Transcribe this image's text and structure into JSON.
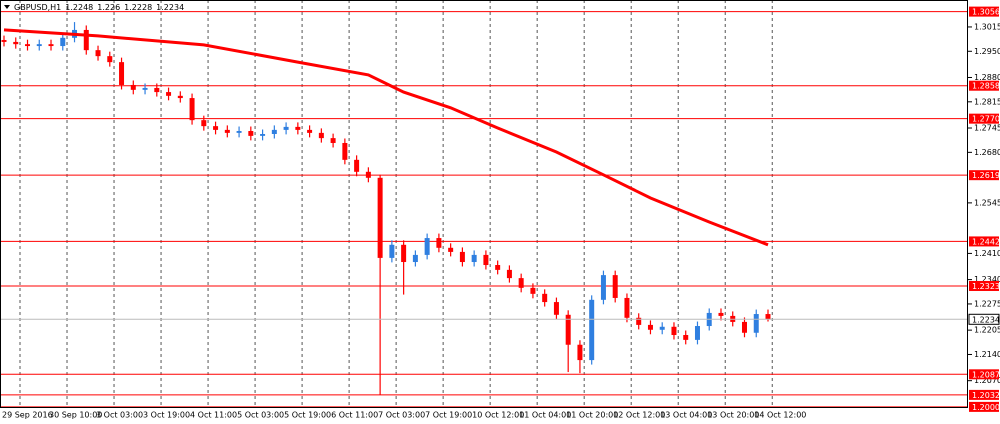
{
  "chart_data": {
    "type": "candlestick",
    "symbol": "GBPUSD,H1",
    "up_color": "#2f7fe0",
    "down_color": "#ff0000",
    "level_color": "#ff0000",
    "grid": true,
    "ylim": [
      1.1997,
      1.3087
    ],
    "yticks": [
      1.3015,
      {
        "value": 1.295,
        "label": "1.2950"
      },
      {
        "value": 1.288,
        "label": "1.2880"
      },
      1.2815,
      1.2745,
      {
        "value": 1.268,
        "label": "1.2680"
      },
      1.2545,
      {
        "value": 1.241,
        "label": "1.2410"
      },
      {
        "value": 1.234,
        "label": "1.2340"
      },
      1.2275,
      1.2205,
      {
        "value": 1.214,
        "label": "1.2140"
      },
      {
        "value": 1.207,
        "label": "1.2070"
      }
    ],
    "levels": [
      1.3056,
      1.2858,
      {
        "value": 1.277,
        "label": "1.2770"
      },
      1.2619,
      1.2442,
      1.2323,
      1.2087,
      1.2032,
      {
        "value": 1.2,
        "label": "1.2000"
      }
    ],
    "xlim": [
      0,
      65
    ],
    "xticks": [
      {
        "value": 0,
        "label": "29 Sep 2016"
      },
      {
        "value": 4,
        "label": "30 Sep 10:00"
      },
      {
        "value": 8,
        "label": "3 Oct 03:00"
      },
      {
        "value": 12,
        "label": "3 Oct 19:00"
      },
      {
        "value": 16,
        "label": "4 Oct 11:00"
      },
      {
        "value": 20,
        "label": "5 Oct 03:00"
      },
      {
        "value": 24,
        "label": "5 Oct 19:00"
      },
      {
        "value": 28,
        "label": "6 Oct 11:00"
      },
      {
        "value": 32,
        "label": "7 Oct 03:00"
      },
      {
        "value": 36,
        "label": "7 Oct 19:00"
      },
      {
        "value": 40,
        "label": "10 Oct 12:00"
      },
      {
        "value": 44,
        "label": "11 Oct 04:00"
      },
      {
        "value": 48,
        "label": "11 Oct 20:00"
      },
      {
        "value": 52,
        "label": "12 Oct 12:00"
      },
      {
        "value": 56,
        "label": "13 Oct 04:00"
      },
      {
        "value": 60,
        "label": "13 Oct 20:00"
      },
      {
        "value": 64,
        "label": "14 Oct 12:00"
      }
    ],
    "open": [
      1.298,
      1.2975,
      1.2969,
      1.2964,
      1.2969,
      1.2964,
      1.2986,
      1.3007,
      1.2953,
      1.2937,
      1.2921,
      1.286,
      1.2847,
      1.2852,
      1.2841,
      1.2831,
      1.2825,
      1.2766,
      1.275,
      1.274,
      1.2732,
      1.2737,
      1.2724,
      1.2729,
      1.274,
      1.2748,
      1.274,
      1.2732,
      1.2718,
      1.2705,
      1.266,
      1.2628,
      1.2612,
      1.2398,
      1.2433,
      1.2387,
      1.2406,
      1.2451,
      1.2425,
      1.2414,
      1.2387,
      1.2406,
      1.2379,
      1.2366,
      1.2344,
      1.2318,
      1.2302,
      1.228,
      1.2246,
      1.2166,
      1.2125,
      1.2286,
      1.2352,
      1.2291,
      1.2238,
      1.2219,
      1.2206,
      1.2214,
      1.2192,
      1.2179,
      1.2216,
      1.2251,
      1.2243,
      1.2227,
      1.2198,
      1.2248
    ],
    "high": [
      1.2992,
      1.2987,
      1.2981,
      1.2981,
      1.2981,
      1.2998,
      1.3028,
      1.3019,
      1.2965,
      1.2949,
      1.2933,
      1.2872,
      1.2864,
      1.2864,
      1.2853,
      1.2843,
      1.2837,
      1.2778,
      1.2762,
      1.2752,
      1.2749,
      1.2749,
      1.2741,
      1.2752,
      1.276,
      1.276,
      1.2752,
      1.2744,
      1.273,
      1.2717,
      1.2672,
      1.264,
      1.262,
      1.2445,
      1.2445,
      1.2418,
      1.2463,
      1.2463,
      1.2437,
      1.2426,
      1.2418,
      1.2418,
      1.2391,
      1.2378,
      1.2356,
      1.233,
      1.2314,
      1.2292,
      1.2258,
      1.2178,
      1.2298,
      1.2364,
      1.2364,
      1.2303,
      1.225,
      1.2231,
      1.2226,
      1.2226,
      1.2204,
      1.2228,
      1.2263,
      1.2263,
      1.2255,
      1.2239,
      1.226,
      1.226
    ],
    "low": [
      1.2963,
      1.2957,
      1.2952,
      1.2952,
      1.2952,
      1.2952,
      1.2974,
      1.2941,
      1.2925,
      1.2909,
      1.2848,
      1.2835,
      1.2835,
      1.2829,
      1.2819,
      1.2813,
      1.2754,
      1.2738,
      1.2728,
      1.272,
      1.272,
      1.2712,
      1.2712,
      1.2717,
      1.2728,
      1.2728,
      1.272,
      1.2706,
      1.2693,
      1.2648,
      1.2616,
      1.26,
      1.2032,
      1.2386,
      1.23,
      1.2375,
      1.2394,
      1.2413,
      1.2402,
      1.2375,
      1.2375,
      1.2367,
      1.2354,
      1.2332,
      1.2306,
      1.229,
      1.2268,
      1.2234,
      1.2093,
      1.209,
      1.2113,
      1.2274,
      1.2279,
      1.2226,
      1.2207,
      1.2194,
      1.2194,
      1.218,
      1.2167,
      1.2167,
      1.2204,
      1.2231,
      1.2215,
      1.2186,
      1.2186,
      1.2228
    ],
    "close": [
      1.2975,
      1.2969,
      1.2964,
      1.2969,
      1.2964,
      1.2986,
      1.3007,
      1.2953,
      1.2937,
      1.2921,
      1.286,
      1.2847,
      1.2852,
      1.2841,
      1.2831,
      1.2825,
      1.2766,
      1.275,
      1.274,
      1.2732,
      1.2737,
      1.2724,
      1.2729,
      1.274,
      1.2748,
      1.274,
      1.2732,
      1.2718,
      1.2705,
      1.266,
      1.2628,
      1.2612,
      1.2398,
      1.2433,
      1.2387,
      1.2406,
      1.2451,
      1.2425,
      1.2414,
      1.2387,
      1.2406,
      1.2379,
      1.2366,
      1.2344,
      1.2318,
      1.2302,
      1.228,
      1.2246,
      1.2166,
      1.2125,
      1.2286,
      1.2352,
      1.2291,
      1.2238,
      1.2219,
      1.2206,
      1.2214,
      1.2192,
      1.2179,
      1.2216,
      1.2251,
      1.2243,
      1.2227,
      1.2198,
      1.2248,
      1.2234
    ],
    "moving_average": {
      "color": "#ff0000",
      "x": [
        0,
        8,
        17,
        25,
        31,
        34,
        38,
        42,
        47,
        51,
        55,
        60,
        65
      ],
      "values": [
        1.3007,
        1.2991,
        1.2967,
        1.2921,
        1.2887,
        1.2841,
        1.2799,
        1.2745,
        1.2681,
        1.262,
        1.2558,
        1.2494,
        1.2433
      ]
    }
  }
}
